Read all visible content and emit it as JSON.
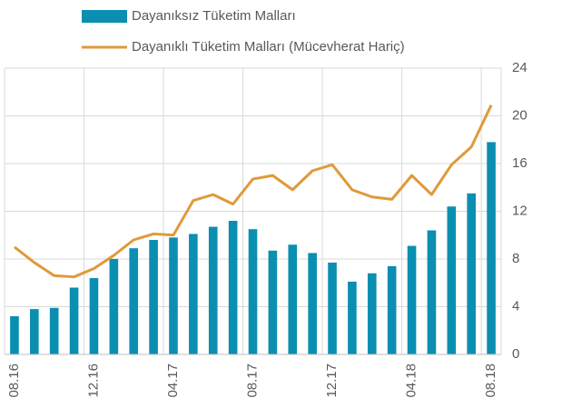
{
  "chart_data": {
    "type": "bar",
    "categories": [
      "08.16",
      null,
      null,
      null,
      "12.16",
      null,
      null,
      null,
      "04.17",
      null,
      null,
      null,
      "08.17",
      null,
      null,
      null,
      "12.17",
      null,
      null,
      null,
      "04.18",
      null,
      null,
      null,
      "08.18"
    ],
    "series": [
      {
        "name": "Dayanıksız Tüketim Malları",
        "type": "bar",
        "color": "#0b8fb1",
        "values": [
          3.2,
          3.8,
          3.9,
          5.6,
          6.4,
          8.0,
          8.9,
          9.6,
          9.8,
          10.1,
          10.7,
          11.2,
          10.5,
          8.7,
          9.2,
          8.5,
          7.7,
          6.1,
          6.8,
          7.4,
          9.1,
          10.4,
          12.4,
          13.5,
          17.8
        ]
      },
      {
        "name": "Dayanıklı Tüketim Malları (Mücevherat Hariç)",
        "type": "line",
        "color": "#e0993a",
        "values": [
          9.0,
          7.7,
          6.6,
          6.5,
          7.2,
          8.3,
          9.6,
          10.1,
          10.0,
          12.9,
          13.4,
          12.6,
          14.7,
          15.0,
          13.8,
          15.4,
          15.9,
          13.8,
          13.2,
          13.0,
          15.0,
          13.4,
          15.9,
          17.4,
          20.9
        ]
      }
    ],
    "ylim": [
      0,
      24
    ],
    "yticks": [
      0,
      4,
      8,
      12,
      16,
      20,
      24
    ],
    "yaxis_side": "right",
    "grid": true
  }
}
